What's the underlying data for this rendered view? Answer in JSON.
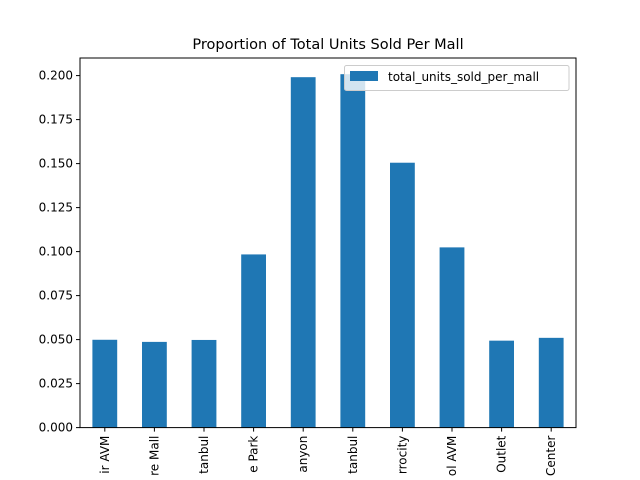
{
  "chart_data": {
    "type": "bar",
    "title": "Proportion of Total Units Sold Per Mall",
    "xlabel": "",
    "ylabel": "",
    "ylim": [
      0,
      0.21
    ],
    "yticks": [
      "0.000",
      "0.025",
      "0.050",
      "0.075",
      "0.100",
      "0.125",
      "0.150",
      "0.175",
      "0.200"
    ],
    "categories": [
      "ir AVM",
      "re Mall",
      "tanbul",
      "e Park",
      "anyon",
      "tanbul",
      "rrocity",
      "ol AVM",
      "Outlet",
      "Center"
    ],
    "series": [
      {
        "name": "total_units_sold_per_mall",
        "color": "#1f77b4",
        "values": [
          0.0499,
          0.0487,
          0.0498,
          0.0984,
          0.1991,
          0.2008,
          0.1505,
          0.1024,
          0.0494,
          0.051
        ]
      }
    ],
    "legend": {
      "placement": "top-right",
      "entries": [
        "total_units_sold_per_mall"
      ]
    },
    "grid": false
  }
}
